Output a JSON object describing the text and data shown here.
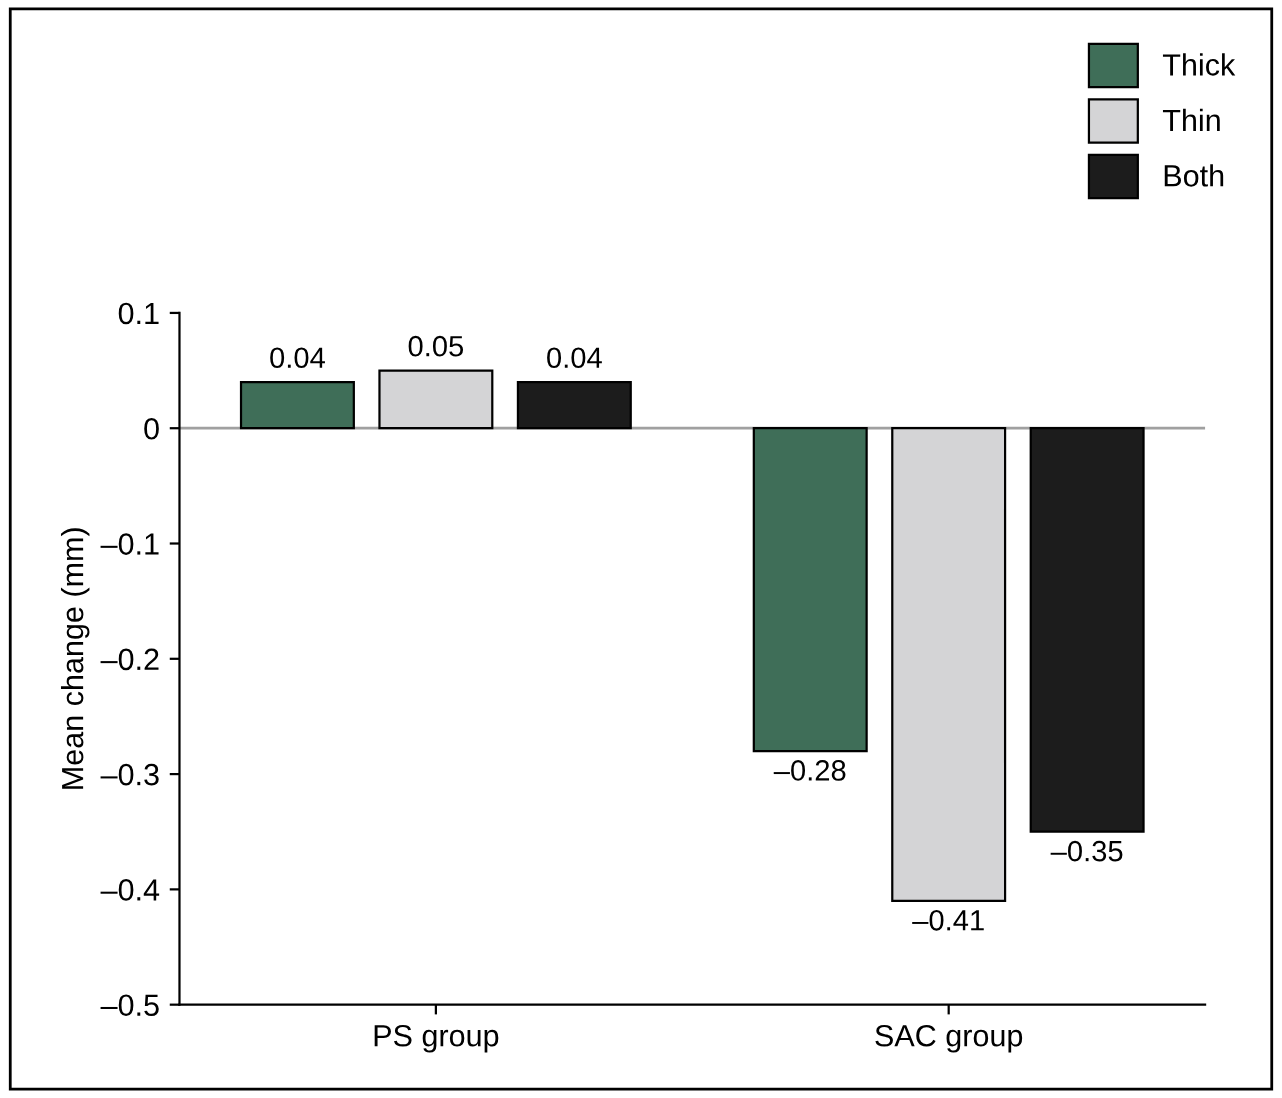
{
  "chart_data": {
    "type": "bar",
    "ylabel": "Mean change (mm)",
    "categories": [
      "PS group",
      "SAC group"
    ],
    "series": [
      {
        "name": "Thick",
        "color": "#3f6e58",
        "values": [
          0.04,
          -0.28
        ],
        "value_labels": [
          "0.04",
          "–0.28"
        ]
      },
      {
        "name": "Thin",
        "color": "#d4d4d6",
        "values": [
          0.05,
          -0.41
        ],
        "value_labels": [
          "0.05",
          "–0.41"
        ]
      },
      {
        "name": "Both",
        "color": "#1c1c1c",
        "values": [
          0.04,
          -0.35
        ],
        "value_labels": [
          "0.04",
          "–0.35"
        ]
      }
    ],
    "ylim": [
      -0.5,
      0.1
    ],
    "yticks": [
      {
        "value": -0.5,
        "label": "–0.5"
      },
      {
        "value": -0.4,
        "label": "–0.4"
      },
      {
        "value": -0.3,
        "label": "–0.3"
      },
      {
        "value": -0.2,
        "label": "–0.2"
      },
      {
        "value": -0.1,
        "label": "–0.1"
      },
      0,
      0.1
    ],
    "ref_lines": [
      {
        "axis": "y",
        "value": 0,
        "color": "#a0a0a0"
      }
    ],
    "legend": "top right",
    "grid": false
  }
}
